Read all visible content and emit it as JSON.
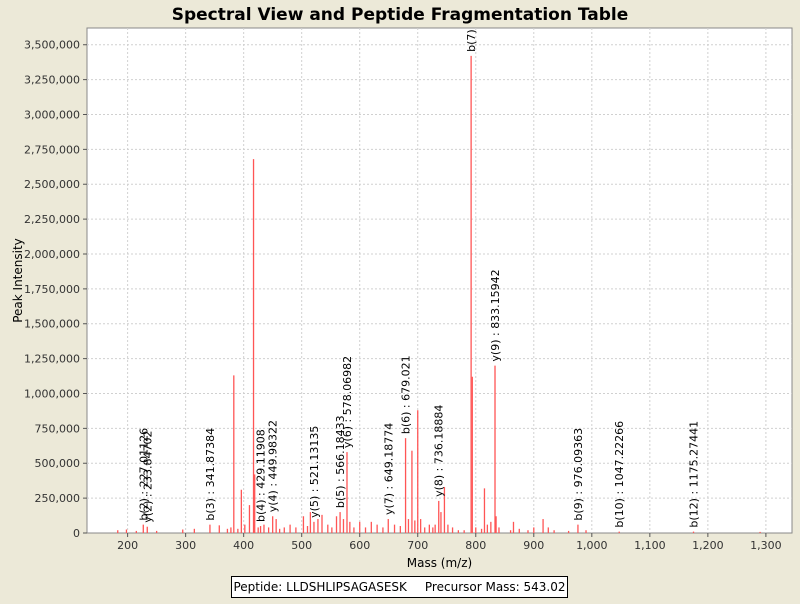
{
  "chart_data": {
    "type": "bar",
    "title": "Spectral View and Peptide Fragmentation Table",
    "xlabel": "Mass (m/z)",
    "ylabel": "Peak Intensity",
    "xlim": [
      130,
      1345
    ],
    "ylim": [
      0,
      3620000
    ],
    "x_ticks": [
      200,
      300,
      400,
      500,
      600,
      700,
      800,
      900,
      1000,
      1100,
      1200,
      1300
    ],
    "x_tick_labels": [
      "200",
      "300",
      "400",
      "500",
      "600",
      "700",
      "800",
      "900",
      "1,000",
      "1,100",
      "1,200",
      "1,300"
    ],
    "y_ticks": [
      0,
      250000,
      500000,
      750000,
      1000000,
      1250000,
      1500000,
      1750000,
      2000000,
      2250000,
      2500000,
      2750000,
      3000000,
      3250000,
      3500000
    ],
    "y_tick_labels": [
      "0",
      "250,000",
      "500,000",
      "750,000",
      "1,000,000",
      "1,250,000",
      "1,500,000",
      "1,750,000",
      "2,000,000",
      "2,250,000",
      "2,500,000",
      "2,750,000",
      "3,000,000",
      "3,250,000",
      "3,500,000"
    ],
    "grid": true,
    "series_color": "#FF5555",
    "peaks": [
      {
        "x": 183,
        "y": 20000
      },
      {
        "x": 198,
        "y": 25000
      },
      {
        "x": 215,
        "y": 15000
      },
      {
        "x": 227.01,
        "y": 60000
      },
      {
        "x": 233.85,
        "y": 45000
      },
      {
        "x": 250,
        "y": 15000
      },
      {
        "x": 295,
        "y": 25000
      },
      {
        "x": 315,
        "y": 30000
      },
      {
        "x": 341.87,
        "y": 60000
      },
      {
        "x": 358,
        "y": 55000
      },
      {
        "x": 372,
        "y": 30000
      },
      {
        "x": 378,
        "y": 40000
      },
      {
        "x": 383,
        "y": 1130000
      },
      {
        "x": 390,
        "y": 30000
      },
      {
        "x": 396,
        "y": 310000
      },
      {
        "x": 402,
        "y": 60000
      },
      {
        "x": 410,
        "y": 200000
      },
      {
        "x": 417,
        "y": 2680000
      },
      {
        "x": 419,
        "y": 420000
      },
      {
        "x": 425,
        "y": 40000
      },
      {
        "x": 429.12,
        "y": 50000
      },
      {
        "x": 435,
        "y": 60000
      },
      {
        "x": 443,
        "y": 40000
      },
      {
        "x": 449.98,
        "y": 120000
      },
      {
        "x": 456,
        "y": 100000
      },
      {
        "x": 462,
        "y": 30000
      },
      {
        "x": 470,
        "y": 40000
      },
      {
        "x": 480,
        "y": 60000
      },
      {
        "x": 490,
        "y": 40000
      },
      {
        "x": 503,
        "y": 120000
      },
      {
        "x": 510,
        "y": 50000
      },
      {
        "x": 515,
        "y": 150000
      },
      {
        "x": 521.13,
        "y": 80000
      },
      {
        "x": 528,
        "y": 100000
      },
      {
        "x": 535,
        "y": 130000
      },
      {
        "x": 545,
        "y": 60000
      },
      {
        "x": 552,
        "y": 40000
      },
      {
        "x": 560,
        "y": 120000
      },
      {
        "x": 566.18,
        "y": 150000
      },
      {
        "x": 572,
        "y": 100000
      },
      {
        "x": 578.07,
        "y": 580000
      },
      {
        "x": 583,
        "y": 80000
      },
      {
        "x": 590,
        "y": 40000
      },
      {
        "x": 600,
        "y": 80000
      },
      {
        "x": 610,
        "y": 40000
      },
      {
        "x": 620,
        "y": 80000
      },
      {
        "x": 630,
        "y": 60000
      },
      {
        "x": 640,
        "y": 40000
      },
      {
        "x": 649.19,
        "y": 100000
      },
      {
        "x": 660,
        "y": 60000
      },
      {
        "x": 670,
        "y": 50000
      },
      {
        "x": 679.02,
        "y": 680000
      },
      {
        "x": 684,
        "y": 100000
      },
      {
        "x": 690,
        "y": 590000
      },
      {
        "x": 695,
        "y": 90000
      },
      {
        "x": 700,
        "y": 880000
      },
      {
        "x": 705,
        "y": 100000
      },
      {
        "x": 712,
        "y": 40000
      },
      {
        "x": 720,
        "y": 60000
      },
      {
        "x": 726,
        "y": 40000
      },
      {
        "x": 730,
        "y": 60000
      },
      {
        "x": 736.19,
        "y": 230000
      },
      {
        "x": 740,
        "y": 150000
      },
      {
        "x": 746,
        "y": 330000
      },
      {
        "x": 752,
        "y": 60000
      },
      {
        "x": 760,
        "y": 40000
      },
      {
        "x": 770,
        "y": 20000
      },
      {
        "x": 780,
        "y": 20000
      },
      {
        "x": 792,
        "y": 3420000
      },
      {
        "x": 794,
        "y": 1120000
      },
      {
        "x": 800,
        "y": 40000
      },
      {
        "x": 810,
        "y": 30000
      },
      {
        "x": 815,
        "y": 320000
      },
      {
        "x": 820,
        "y": 60000
      },
      {
        "x": 826,
        "y": 80000
      },
      {
        "x": 833.16,
        "y": 1200000
      },
      {
        "x": 835,
        "y": 120000
      },
      {
        "x": 840,
        "y": 40000
      },
      {
        "x": 860,
        "y": 20000
      },
      {
        "x": 865,
        "y": 80000
      },
      {
        "x": 875,
        "y": 30000
      },
      {
        "x": 890,
        "y": 20000
      },
      {
        "x": 900,
        "y": 40000
      },
      {
        "x": 916,
        "y": 100000
      },
      {
        "x": 925,
        "y": 40000
      },
      {
        "x": 935,
        "y": 20000
      },
      {
        "x": 960,
        "y": 15000
      },
      {
        "x": 976.09,
        "y": 60000
      },
      {
        "x": 990,
        "y": 20000
      },
      {
        "x": 1047.22,
        "y": 10000
      },
      {
        "x": 1175.27,
        "y": 10000
      },
      {
        "x": 1290,
        "y": 8000
      }
    ],
    "annotations": [
      {
        "label": "b(2) : 227.01126",
        "x": 227.01126,
        "y": 60000
      },
      {
        "label": "y(2) : 233.84702",
        "x": 233.84702,
        "y": 45000
      },
      {
        "label": "b(3) : 341.87384",
        "x": 341.87384,
        "y": 60000
      },
      {
        "label": "b(4) : 429.11908",
        "x": 429.11908,
        "y": 50000
      },
      {
        "label": "y(4) : 449.98322",
        "x": 449.98322,
        "y": 120000
      },
      {
        "label": "y(5) : 521.13135",
        "x": 521.13135,
        "y": 80000
      },
      {
        "label": "b(5) : 566.18433",
        "x": 566.18433,
        "y": 150000
      },
      {
        "label": "y(6) : 578.06982",
        "x": 578.06982,
        "y": 580000
      },
      {
        "label": "y(7) : 649.18774",
        "x": 649.18774,
        "y": 100000
      },
      {
        "label": "b(6) : 679.021",
        "x": 679.021,
        "y": 680000
      },
      {
        "label": "y(8) : 736.18884",
        "x": 736.18884,
        "y": 230000
      },
      {
        "label": "b(7)",
        "x": 792,
        "y": 3420000
      },
      {
        "label": "y(9) : 833.15942",
        "x": 833.15942,
        "y": 1200000
      },
      {
        "label": "b(9) : 976.09363",
        "x": 976.09363,
        "y": 60000
      },
      {
        "label": "b(10) : 1047.22266",
        "x": 1047.22266,
        "y": 10000
      },
      {
        "label": "b(12) : 1175.27441",
        "x": 1175.27441,
        "y": 10000
      }
    ]
  },
  "footer": {
    "peptide": "Peptide: LLDSHLIPSAGASESK",
    "precursor": "Precursor Mass: 543.02"
  }
}
